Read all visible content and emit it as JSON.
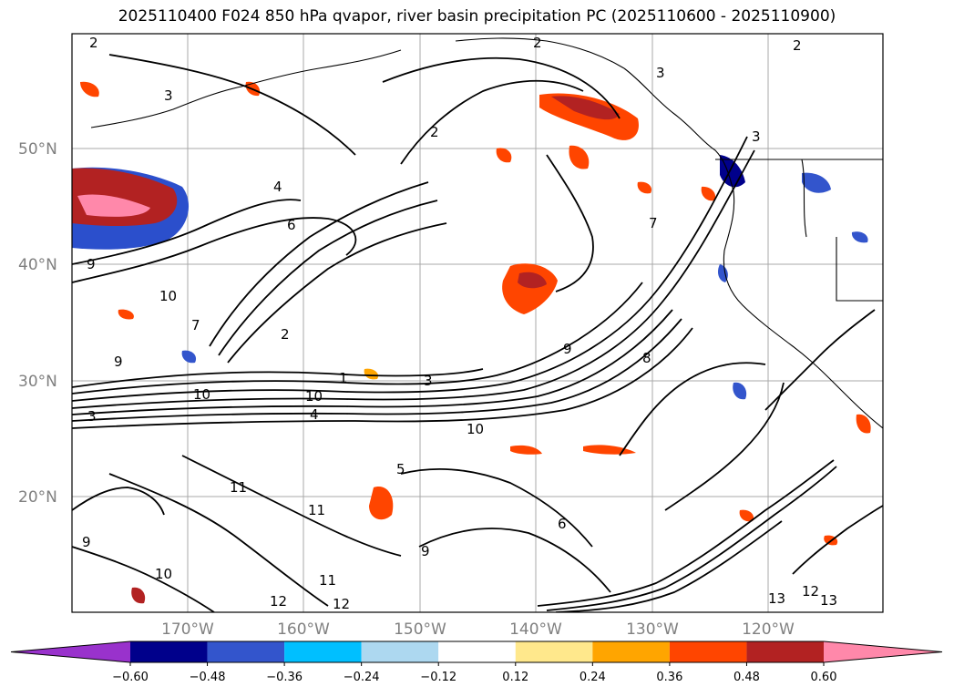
{
  "title": "2025110400 F024 850 hPa qvapor, river basin precipitation PC (2025110600 - 2025110900)",
  "map": {
    "lat_ticks": [
      "50°N",
      "40°N",
      "30°N",
      "20°N"
    ],
    "lon_ticks": [
      "170°W",
      "160°W",
      "150°W",
      "140°W",
      "130°W",
      "120°W"
    ],
    "contour_labels": [
      "2",
      "3",
      "2",
      "2",
      "4",
      "3",
      "2",
      "3",
      "6",
      "9",
      "10",
      "7",
      "2",
      "1",
      "9",
      "10",
      "10",
      "3",
      "4",
      "3",
      "10",
      "9",
      "8",
      "7",
      "11",
      "11",
      "5",
      "6",
      "9",
      "12",
      "12",
      "13",
      "12",
      "13",
      "11",
      "10",
      "9"
    ]
  },
  "colorbar": {
    "colors": [
      "#9932cc",
      "#00008b",
      "#3355cc",
      "#00bfff",
      "#add8f0",
      "#ffffff",
      "#ffe88c",
      "#ffa500",
      "#ff4500",
      "#b22222",
      "#ff88aa"
    ],
    "tick_labels": [
      "−0.60",
      "−0.48",
      "−0.36",
      "−0.24",
      "−0.12",
      "0.12",
      "0.24",
      "0.36",
      "0.48",
      "0.60"
    ]
  }
}
